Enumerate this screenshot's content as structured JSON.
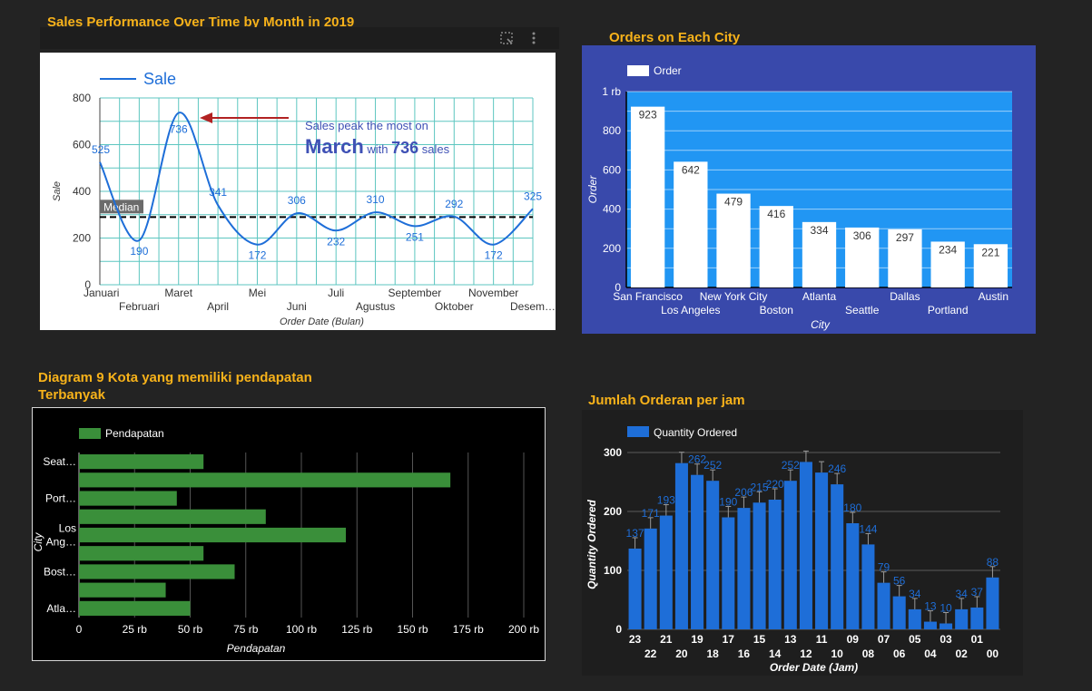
{
  "colors": {
    "background": "#232323",
    "title": "#f7b21a",
    "sale_line": "#1e6ed8",
    "city_panel_bg": "#3949ab",
    "city_plot_bg": "#2196f3",
    "income_bar": "#3a8f3a",
    "hour_bar": "#1e6ed8"
  },
  "icons": {
    "select": "select-icon",
    "more": "more-vert-icon"
  },
  "panel1": {
    "title": "Sales Performance Over Time by Month in 2019"
  },
  "panel2": {
    "title": "Orders on Each City"
  },
  "panel3": {
    "title_line1": "Diagram 9 Kota yang memiliki pendapatan",
    "title_line2": "Terbanyak"
  },
  "panel4": {
    "title": "Jumlah Orderan per jam"
  },
  "chart_data": [
    {
      "type": "line",
      "title": "Sales Performance Over Time by Month in 2019",
      "xlabel": "Order Date (Bulan)",
      "ylabel": "Sale",
      "categories": [
        "Januari",
        "Februari",
        "Maret",
        "April",
        "Mei",
        "Juni",
        "Juli",
        "Agustus",
        "September",
        "Oktober",
        "November",
        "Desem…"
      ],
      "series": [
        {
          "name": "Sale",
          "values": [
            525,
            190,
            736,
            341,
            172,
            306,
            232,
            310,
            251,
            292,
            172,
            325
          ]
        }
      ],
      "yticks": [
        "0",
        "200",
        "400",
        "600",
        "800"
      ],
      "ylim": [
        0,
        800
      ],
      "grid": true,
      "legend": "top-left",
      "median": {
        "label": "Median",
        "value": 290
      },
      "annotation": {
        "text1": "Sales peak the most on",
        "month": "March",
        "text2": "with",
        "value": "736",
        "text3": "sales"
      }
    },
    {
      "type": "bar",
      "title": "Orders on Each City",
      "xlabel": "City",
      "ylabel": "Order",
      "categories": [
        "San Francisco",
        "Los Angeles",
        "New York City",
        "Boston",
        "Atlanta",
        "Seattle",
        "Dallas",
        "Portland",
        "Austin"
      ],
      "series": [
        {
          "name": "Order",
          "values": [
            923,
            642,
            479,
            416,
            334,
            306,
            297,
            234,
            221
          ]
        }
      ],
      "data_labels": [
        "923",
        "642",
        "479",
        "416",
        "334",
        "306",
        "297",
        "234",
        "221"
      ],
      "yticks": [
        "0",
        "200",
        "400",
        "600",
        "800",
        "1 rb"
      ],
      "ylim": [
        0,
        1000
      ],
      "grid": true,
      "legend": "top-left"
    },
    {
      "type": "bar",
      "orientation": "horizontal",
      "title": "Diagram 9 Kota yang memiliki pendapatan Terbanyak",
      "xlabel": "Pendapatan",
      "ylabel": "City",
      "series": [
        {
          "name": "Pendapatan",
          "values": [
            56000,
            167000,
            44000,
            84000,
            120000,
            56000,
            70000,
            39000,
            50000
          ]
        }
      ],
      "category_labels": [
        {
          "row": 0,
          "lines": [
            "Seat…"
          ]
        },
        {
          "row": 2,
          "lines": [
            "Port…"
          ]
        },
        {
          "row": 4,
          "lines": [
            "Los",
            "Ang…"
          ]
        },
        {
          "row": 6,
          "lines": [
            "Bost…"
          ]
        },
        {
          "row": 8,
          "lines": [
            "Atla…"
          ]
        }
      ],
      "xticks": [
        "0",
        "25 rb",
        "50 rb",
        "75 rb",
        "100 rb",
        "125 rb",
        "150 rb",
        "175 rb",
        "200 rb"
      ],
      "xlim": [
        0,
        200000
      ],
      "grid": true,
      "legend": "top-left"
    },
    {
      "type": "bar",
      "title": "Jumlah Orderan per jam",
      "xlabel": "Order Date (Jam)",
      "ylabel": "Quantity Ordered",
      "categories": [
        "23",
        "22",
        "21",
        "20",
        "19",
        "18",
        "17",
        "16",
        "15",
        "14",
        "13",
        "12",
        "11",
        "10",
        "09",
        "08",
        "07",
        "06",
        "05",
        "04",
        "03",
        "02",
        "01",
        "00"
      ],
      "series": [
        {
          "name": "Quantity Ordered",
          "values": [
            137,
            171,
            193,
            282,
            262,
            252,
            190,
            206,
            215,
            220,
            252,
            284,
            266,
            246,
            180,
            144,
            79,
            56,
            34,
            13,
            10,
            34,
            37,
            88
          ]
        }
      ],
      "data_labels": [
        "137",
        "171",
        "193",
        "",
        "262",
        "252",
        "190",
        "206",
        "215",
        "220",
        "252",
        "",
        "",
        "246",
        "180",
        "144",
        "79",
        "56",
        "34",
        "13",
        "10",
        "34",
        "37",
        "88"
      ],
      "yticks": [
        "0",
        "100",
        "200",
        "300"
      ],
      "ylim": [
        0,
        300
      ],
      "grid": true,
      "legend": "top-left"
    }
  ]
}
